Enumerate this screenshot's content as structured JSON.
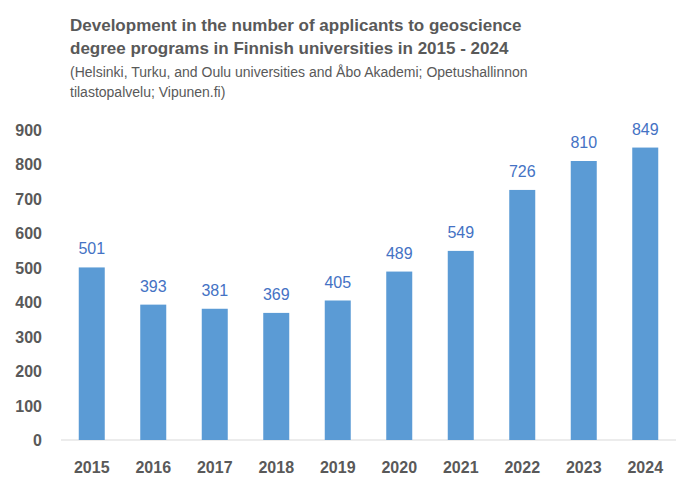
{
  "chart_data": {
    "type": "bar",
    "title": "Development in the number of applicants to geoscience degree programs in Finnish universities in 2015 - 2024",
    "subtitle": "(Helsinki, Turku, and Oulu universities and Åbo Akademi; Opetushallinnon tilastopalvelu; Vipunen.fi)",
    "categories": [
      "2015",
      "2016",
      "2017",
      "2018",
      "2019",
      "2020",
      "2021",
      "2022",
      "2023",
      "2024"
    ],
    "values": [
      501,
      393,
      381,
      369,
      405,
      489,
      549,
      726,
      810,
      849
    ],
    "color": "#5b9bd5",
    "ylim": [
      0,
      900
    ],
    "yticks": [
      0,
      100,
      200,
      300,
      400,
      500,
      600,
      700,
      800,
      900
    ],
    "grid": false,
    "data_labels": true
  }
}
